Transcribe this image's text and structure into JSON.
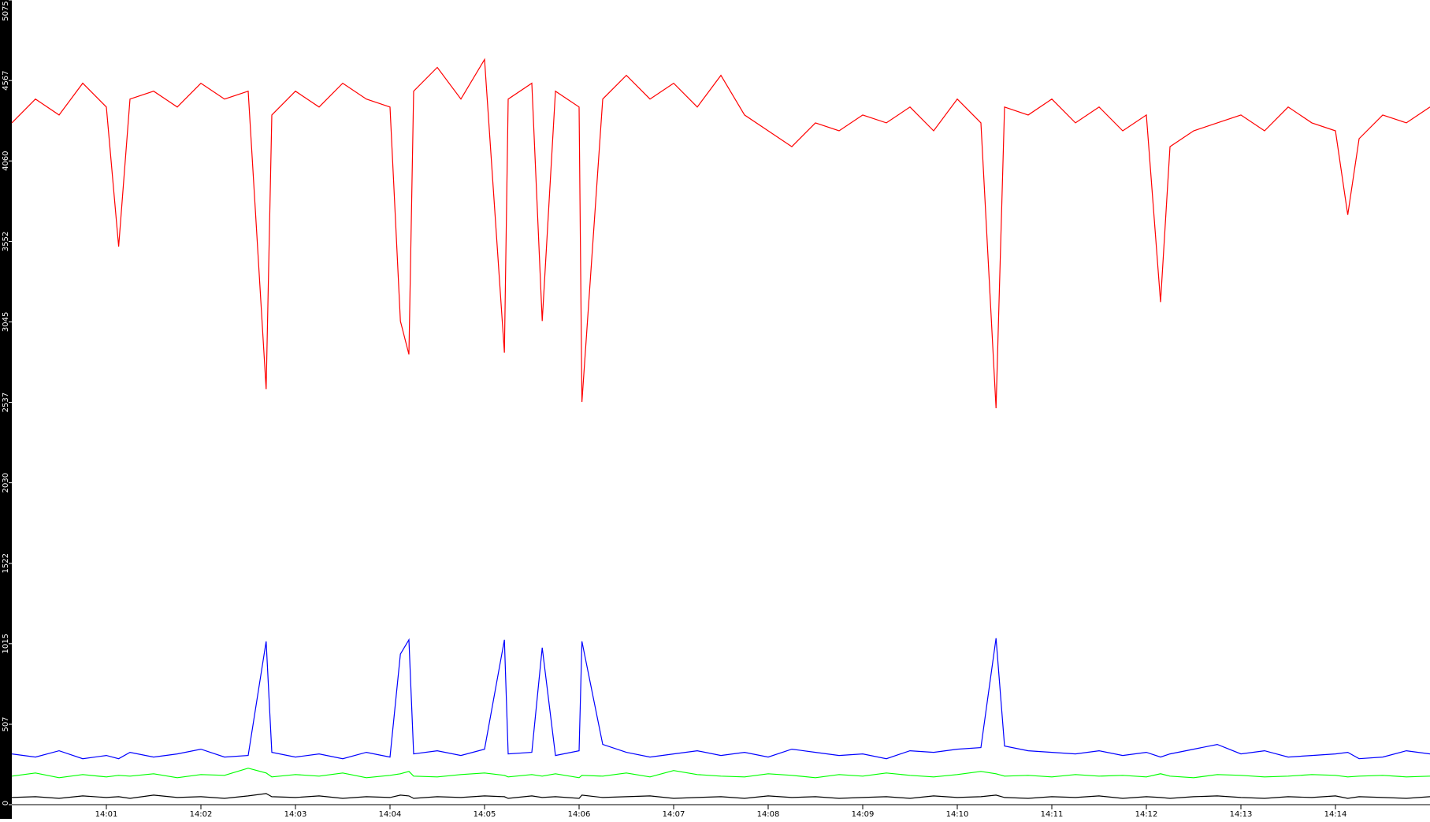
{
  "chart_data": {
    "type": "line",
    "x": [
      0,
      0.25,
      0.5,
      0.75,
      1,
      1.13,
      1.25,
      1.5,
      1.75,
      2,
      2.25,
      2.5,
      2.69,
      2.75,
      3,
      3.25,
      3.5,
      3.75,
      4,
      4.11,
      4.2,
      4.25,
      4.5,
      4.75,
      5,
      5.21,
      5.25,
      5.5,
      5.61,
      5.75,
      6,
      6.03,
      6.25,
      6.5,
      6.75,
      7,
      7.25,
      7.5,
      7.75,
      8,
      8.25,
      8.5,
      8.75,
      9,
      9.25,
      9.5,
      9.75,
      10,
      10.25,
      10.41,
      10.5,
      10.75,
      11,
      11.25,
      11.5,
      11.75,
      12,
      12.15,
      12.25,
      12.5,
      12.75,
      13,
      13.25,
      13.5,
      13.75,
      14,
      14.13,
      14.25,
      14.5,
      14.75,
      15
    ],
    "series": [
      {
        "color": "#ff0000",
        "values": [
          4300,
          4450,
          4350,
          4550,
          4400,
          3520,
          4450,
          4500,
          4400,
          4550,
          4450,
          4500,
          2620,
          4350,
          4500,
          4400,
          4550,
          4450,
          4400,
          3050,
          2840,
          4500,
          4650,
          4450,
          4700,
          2850,
          4450,
          4550,
          3050,
          4500,
          4400,
          2540,
          4450,
          4600,
          4450,
          4550,
          4400,
          4600,
          4350,
          4250,
          4150,
          4300,
          4250,
          4350,
          4300,
          4400,
          4250,
          4450,
          4300,
          2500,
          4400,
          4350,
          4450,
          4300,
          4400,
          4250,
          4350,
          3170,
          4150,
          4250,
          4300,
          4350,
          4250,
          4400,
          4300,
          4250,
          3720,
          4200,
          4350,
          4300,
          4400
        ]
      },
      {
        "color": "#0000ff",
        "values": [
          320,
          300,
          340,
          290,
          310,
          290,
          330,
          300,
          320,
          350,
          300,
          310,
          1030,
          330,
          300,
          320,
          290,
          330,
          300,
          950,
          1040,
          320,
          340,
          310,
          350,
          1040,
          320,
          330,
          990,
          310,
          340,
          1030,
          380,
          330,
          300,
          320,
          340,
          310,
          330,
          300,
          350,
          330,
          310,
          320,
          290,
          340,
          330,
          350,
          360,
          1050,
          370,
          340,
          330,
          320,
          340,
          310,
          330,
          300,
          320,
          350,
          380,
          320,
          340,
          300,
          310,
          320,
          330,
          290,
          300,
          340,
          320
        ]
      },
      {
        "color": "#00ff00",
        "values": [
          180,
          200,
          170,
          190,
          175,
          185,
          180,
          195,
          170,
          190,
          185,
          230,
          200,
          175,
          190,
          180,
          200,
          170,
          185,
          195,
          210,
          180,
          175,
          190,
          200,
          185,
          175,
          190,
          180,
          195,
          170,
          185,
          180,
          200,
          175,
          215,
          190,
          180,
          175,
          195,
          185,
          170,
          190,
          180,
          200,
          185,
          175,
          190,
          210,
          195,
          180,
          185,
          175,
          190,
          180,
          185,
          175,
          195,
          180,
          170,
          190,
          185,
          175,
          180,
          190,
          185,
          175,
          180,
          185,
          175,
          180
        ]
      },
      {
        "color": "#000000",
        "values": [
          45,
          50,
          40,
          55,
          45,
          50,
          40,
          60,
          45,
          50,
          40,
          55,
          70,
          50,
          45,
          55,
          40,
          50,
          45,
          60,
          55,
          40,
          50,
          45,
          55,
          50,
          40,
          55,
          45,
          50,
          40,
          60,
          45,
          50,
          55,
          40,
          45,
          50,
          40,
          55,
          45,
          50,
          40,
          45,
          50,
          40,
          55,
          45,
          50,
          60,
          45,
          40,
          50,
          45,
          55,
          40,
          50,
          45,
          40,
          50,
          55,
          45,
          40,
          50,
          45,
          55,
          40,
          50,
          45,
          40,
          50
        ]
      }
    ],
    "xlim": [
      0,
      15
    ],
    "ylim": [
      0,
      5075
    ],
    "xticks": [
      {
        "value": 1,
        "label": "14:01"
      },
      {
        "value": 2,
        "label": "14:02"
      },
      {
        "value": 3,
        "label": "14:03"
      },
      {
        "value": 4,
        "label": "14:04"
      },
      {
        "value": 5,
        "label": "14:05"
      },
      {
        "value": 6,
        "label": "14:06"
      },
      {
        "value": 7,
        "label": "14:07"
      },
      {
        "value": 8,
        "label": "14:08"
      },
      {
        "value": 9,
        "label": "14:09"
      },
      {
        "value": 10,
        "label": "14:10"
      },
      {
        "value": 11,
        "label": "14:11"
      },
      {
        "value": 12,
        "label": "14:12"
      },
      {
        "value": 13,
        "label": "14:13"
      },
      {
        "value": 14,
        "label": "14:14"
      }
    ],
    "yticks": [
      0,
      507,
      1015,
      1522,
      2030,
      2537,
      3045,
      3552,
      4060,
      4567,
      5075
    ]
  }
}
